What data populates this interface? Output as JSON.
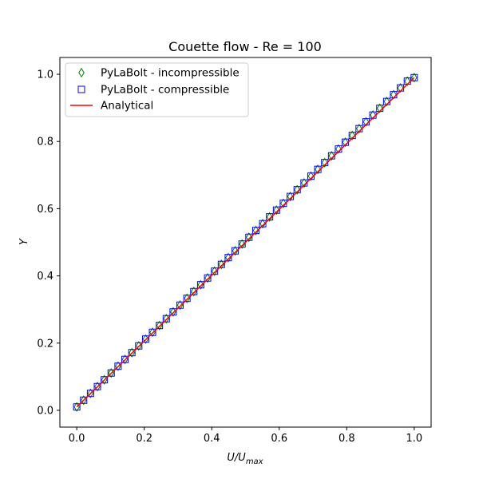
{
  "chart_data": {
    "type": "scatter",
    "title": "Couette flow - Re = 100",
    "xlabel": "U/U",
    "xlabel_sub": "max",
    "ylabel": "Y",
    "xlim": [
      -0.05,
      1.05
    ],
    "ylim": [
      -0.05,
      1.05
    ],
    "xticks": [
      0.0,
      0.2,
      0.4,
      0.6,
      0.8,
      1.0
    ],
    "yticks": [
      0.0,
      0.2,
      0.4,
      0.6,
      0.8,
      1.0
    ],
    "xtick_labels": [
      "0.0",
      "0.2",
      "0.4",
      "0.6",
      "0.8",
      "1.0"
    ],
    "ytick_labels": [
      "0.0",
      "0.2",
      "0.4",
      "0.6",
      "0.8",
      "1.0"
    ],
    "grid": false,
    "legend_position": "top-left",
    "series": [
      {
        "name": "PyLaBolt - incompressible",
        "kind": "scatter",
        "marker": "thin-diamond",
        "color": "#008000",
        "x": [
          0.0,
          0.0204,
          0.0408,
          0.0612,
          0.0816,
          0.102,
          0.1224,
          0.1429,
          0.1633,
          0.1837,
          0.2041,
          0.2245,
          0.2449,
          0.2653,
          0.2857,
          0.3061,
          0.3265,
          0.3469,
          0.3673,
          0.3878,
          0.4082,
          0.4286,
          0.449,
          0.4694,
          0.4898,
          0.5102,
          0.5306,
          0.551,
          0.5714,
          0.5918,
          0.6122,
          0.6327,
          0.6531,
          0.6735,
          0.6939,
          0.7143,
          0.7347,
          0.7551,
          0.7755,
          0.7959,
          0.8163,
          0.8367,
          0.8571,
          0.8776,
          0.898,
          0.9184,
          0.9388,
          0.9592,
          0.9796,
          1.0
        ],
        "y": [
          0.01,
          0.0302,
          0.0504,
          0.0706,
          0.0908,
          0.111,
          0.1312,
          0.1514,
          0.1716,
          0.1918,
          0.212,
          0.2322,
          0.2524,
          0.2726,
          0.2928,
          0.313,
          0.3332,
          0.3534,
          0.3736,
          0.3938,
          0.414,
          0.4342,
          0.4544,
          0.4746,
          0.4948,
          0.515,
          0.5352,
          0.5554,
          0.5756,
          0.5958,
          0.616,
          0.6362,
          0.6564,
          0.6766,
          0.6968,
          0.717,
          0.7372,
          0.7574,
          0.7776,
          0.7978,
          0.818,
          0.8382,
          0.8584,
          0.8786,
          0.8988,
          0.919,
          0.9392,
          0.9594,
          0.9796,
          0.99
        ]
      },
      {
        "name": "PyLaBolt - compressible",
        "kind": "scatter",
        "marker": "square",
        "color": "#0000ff",
        "x": [
          0.0,
          0.0204,
          0.0408,
          0.0612,
          0.0816,
          0.102,
          0.1224,
          0.1429,
          0.1633,
          0.1837,
          0.2041,
          0.2245,
          0.2449,
          0.2653,
          0.2857,
          0.3061,
          0.3265,
          0.3469,
          0.3673,
          0.3878,
          0.4082,
          0.4286,
          0.449,
          0.4694,
          0.4898,
          0.5102,
          0.5306,
          0.551,
          0.5714,
          0.5918,
          0.6122,
          0.6327,
          0.6531,
          0.6735,
          0.6939,
          0.7143,
          0.7347,
          0.7551,
          0.7755,
          0.7959,
          0.8163,
          0.8367,
          0.8571,
          0.8776,
          0.898,
          0.9184,
          0.9388,
          0.9592,
          0.9796,
          1.0
        ],
        "y": [
          0.01,
          0.0302,
          0.0504,
          0.0706,
          0.0908,
          0.111,
          0.1312,
          0.1514,
          0.1716,
          0.1918,
          0.212,
          0.2322,
          0.2524,
          0.2726,
          0.2928,
          0.313,
          0.3332,
          0.3534,
          0.3736,
          0.3938,
          0.414,
          0.4342,
          0.4544,
          0.4746,
          0.4948,
          0.515,
          0.5352,
          0.5554,
          0.5756,
          0.5958,
          0.616,
          0.6362,
          0.6564,
          0.6766,
          0.6968,
          0.717,
          0.7372,
          0.7574,
          0.7776,
          0.7978,
          0.818,
          0.8382,
          0.8584,
          0.8786,
          0.8988,
          0.919,
          0.9392,
          0.9594,
          0.9796,
          0.99
        ]
      },
      {
        "name": "Analytical",
        "kind": "line",
        "color": "#ff0000",
        "x": [
          0.0,
          1.0
        ],
        "y": [
          0.01,
          0.99
        ]
      }
    ]
  }
}
